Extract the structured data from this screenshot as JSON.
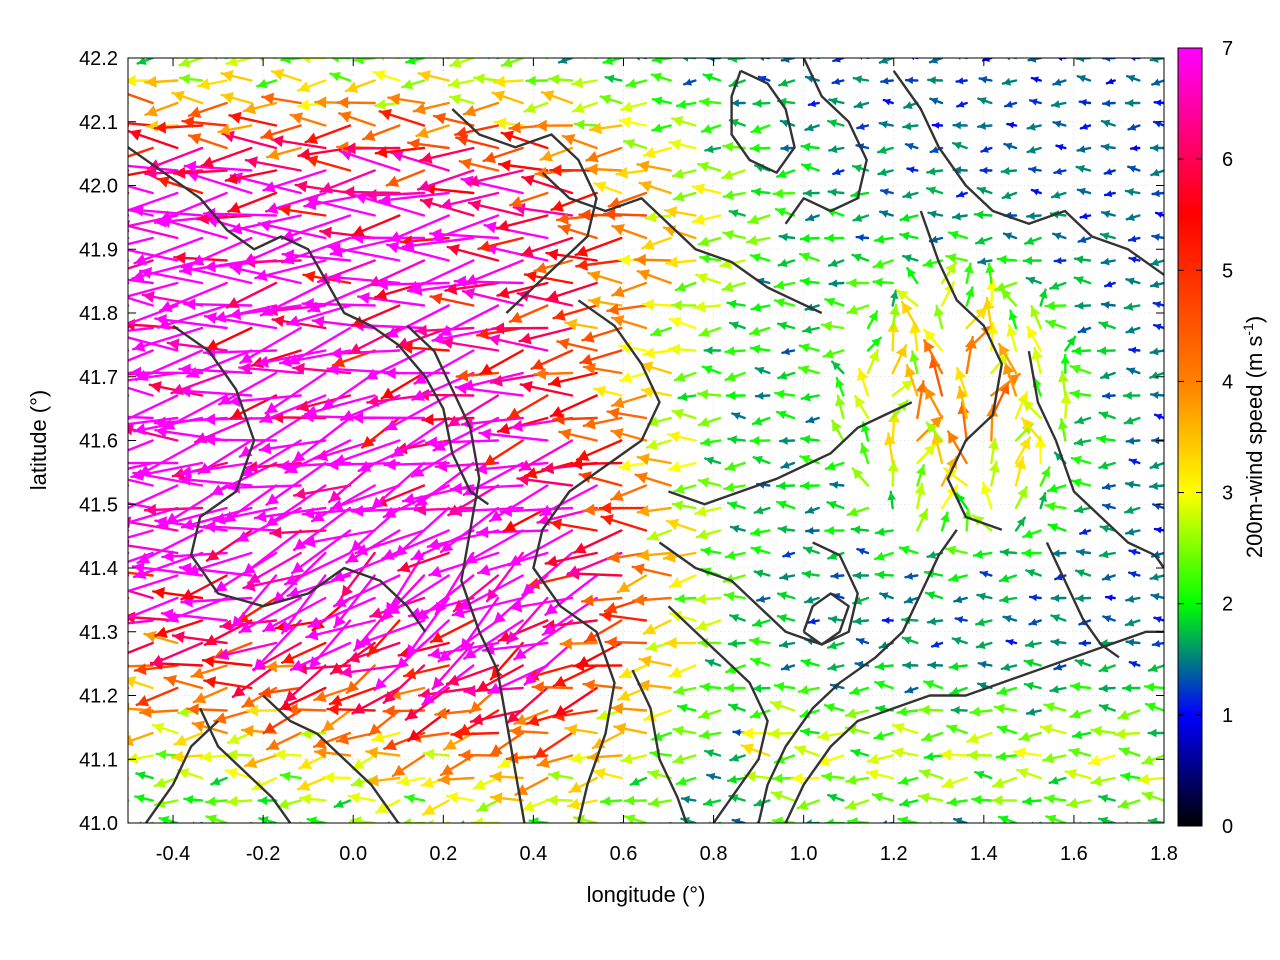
{
  "chart_data": {
    "type": "vector-field",
    "title": "",
    "xlabel": "longitude (°)",
    "ylabel": "latitude (°)",
    "xlim": [
      -0.5,
      1.8
    ],
    "ylim": [
      41.0,
      42.2
    ],
    "xticks": [
      -0.4,
      -0.2,
      0.0,
      0.2,
      0.4,
      0.6,
      0.8,
      1.0,
      1.2,
      1.4,
      1.6,
      1.8
    ],
    "xtick_labels": [
      "-0.4",
      "-0.2",
      "0.0",
      "0.2",
      "0.4",
      "0.6",
      "0.8",
      "1.0",
      "1.2",
      "1.4",
      "1.6",
      "1.8"
    ],
    "yticks": [
      41.0,
      41.1,
      41.2,
      41.3,
      41.4,
      41.5,
      41.6,
      41.7,
      41.8,
      41.9,
      42.0,
      42.1,
      42.2
    ],
    "ytick_labels": [
      "41.0",
      "41.1",
      "41.2",
      "41.3",
      "41.4",
      "41.5",
      "41.6",
      "41.7",
      "41.8",
      "41.9",
      "42.0",
      "42.1",
      "42.2"
    ],
    "grid": true,
    "colorbar": {
      "label_main": "200m-wind speed (m s",
      "label_sup": "-1",
      "label_end": ")",
      "range": [
        0,
        7
      ],
      "ticks": [
        "0",
        "1",
        "2",
        "3",
        "4",
        "5",
        "6",
        "7"
      ],
      "stops": [
        "#000000",
        "#0000ff",
        "#00ff00",
        "#ffff00",
        "#ff8000",
        "#ff0000",
        "#ff00ff"
      ]
    },
    "contours": [
      [
        [
          -0.5,
          42.06
        ],
        [
          -0.42,
          42.02
        ],
        [
          -0.34,
          41.98
        ],
        [
          -0.28,
          41.93
        ],
        [
          -0.22,
          41.9
        ],
        [
          -0.16,
          41.92
        ],
        [
          -0.1,
          41.9
        ],
        [
          -0.06,
          41.85
        ],
        [
          -0.02,
          41.8
        ],
        [
          0.04,
          41.78
        ],
        [
          0.1,
          41.75
        ],
        [
          0.16,
          41.7
        ],
        [
          0.2,
          41.65
        ],
        [
          0.22,
          41.58
        ],
        [
          0.26,
          41.52
        ],
        [
          0.3,
          41.5
        ]
      ],
      [
        [
          -0.4,
          41.78
        ],
        [
          -0.32,
          41.74
        ],
        [
          -0.26,
          41.68
        ],
        [
          -0.22,
          41.6
        ],
        [
          -0.26,
          41.52
        ],
        [
          -0.34,
          41.48
        ],
        [
          -0.36,
          41.42
        ],
        [
          -0.3,
          41.36
        ],
        [
          -0.2,
          41.34
        ],
        [
          -0.1,
          41.36
        ],
        [
          -0.02,
          41.4
        ],
        [
          0.06,
          41.38
        ],
        [
          0.12,
          41.34
        ],
        [
          0.16,
          41.3
        ]
      ],
      [
        [
          0.12,
          41.78
        ],
        [
          0.18,
          41.74
        ],
        [
          0.22,
          41.68
        ],
        [
          0.26,
          41.62
        ],
        [
          0.28,
          41.54
        ],
        [
          0.26,
          41.46
        ],
        [
          0.24,
          41.38
        ],
        [
          0.28,
          41.3
        ],
        [
          0.32,
          41.24
        ],
        [
          0.34,
          41.16
        ],
        [
          0.36,
          41.08
        ],
        [
          0.38,
          41.0
        ]
      ],
      [
        [
          0.5,
          41.82
        ],
        [
          0.58,
          41.78
        ],
        [
          0.64,
          41.72
        ],
        [
          0.68,
          41.66
        ],
        [
          0.64,
          41.6
        ],
        [
          0.56,
          41.56
        ],
        [
          0.48,
          41.52
        ],
        [
          0.42,
          41.46
        ],
        [
          0.4,
          41.4
        ],
        [
          0.46,
          41.34
        ],
        [
          0.54,
          41.3
        ],
        [
          0.58,
          41.22
        ],
        [
          0.56,
          41.14
        ],
        [
          0.52,
          41.06
        ],
        [
          0.5,
          41.0
        ]
      ],
      [
        [
          0.42,
          42.02
        ],
        [
          0.48,
          41.98
        ],
        [
          0.56,
          41.96
        ],
        [
          0.64,
          41.98
        ],
        [
          0.7,
          41.94
        ],
        [
          0.76,
          41.9
        ],
        [
          0.84,
          41.88
        ],
        [
          0.92,
          41.84
        ],
        [
          0.98,
          41.82
        ],
        [
          1.04,
          41.8
        ]
      ],
      [
        [
          0.22,
          42.12
        ],
        [
          0.28,
          42.08
        ],
        [
          0.36,
          42.06
        ],
        [
          0.44,
          42.08
        ],
        [
          0.5,
          42.04
        ],
        [
          0.54,
          41.98
        ],
        [
          0.52,
          41.92
        ],
        [
          0.46,
          41.88
        ],
        [
          0.4,
          41.84
        ],
        [
          0.34,
          41.8
        ]
      ],
      [
        [
          0.86,
          42.18
        ],
        [
          0.92,
          42.16
        ],
        [
          0.96,
          42.12
        ],
        [
          0.98,
          42.06
        ],
        [
          0.94,
          42.02
        ],
        [
          0.88,
          42.04
        ],
        [
          0.84,
          42.08
        ],
        [
          0.84,
          42.14
        ],
        [
          0.86,
          42.18
        ]
      ],
      [
        [
          1.0,
          42.2
        ],
        [
          1.04,
          42.14
        ],
        [
          1.1,
          42.1
        ],
        [
          1.14,
          42.04
        ],
        [
          1.12,
          41.98
        ],
        [
          1.06,
          41.96
        ],
        [
          1.0,
          41.98
        ],
        [
          0.96,
          41.94
        ]
      ],
      [
        [
          1.2,
          42.18
        ],
        [
          1.26,
          42.12
        ],
        [
          1.3,
          42.06
        ],
        [
          1.36,
          42.0
        ],
        [
          1.42,
          41.96
        ],
        [
          1.5,
          41.94
        ],
        [
          1.58,
          41.96
        ],
        [
          1.64,
          41.92
        ],
        [
          1.72,
          41.9
        ],
        [
          1.8,
          41.86
        ]
      ],
      [
        [
          1.26,
          41.96
        ],
        [
          1.3,
          41.88
        ],
        [
          1.34,
          41.82
        ],
        [
          1.4,
          41.78
        ],
        [
          1.44,
          41.72
        ],
        [
          1.42,
          41.64
        ],
        [
          1.36,
          41.6
        ],
        [
          1.32,
          41.54
        ],
        [
          1.36,
          41.48
        ],
        [
          1.44,
          41.46
        ]
      ],
      [
        [
          1.5,
          41.74
        ],
        [
          1.52,
          41.66
        ],
        [
          1.56,
          41.6
        ],
        [
          1.6,
          41.52
        ],
        [
          1.66,
          41.48
        ],
        [
          1.72,
          41.44
        ],
        [
          1.78,
          41.42
        ],
        [
          1.8,
          41.4
        ]
      ],
      [
        [
          0.7,
          41.52
        ],
        [
          0.78,
          41.5
        ],
        [
          0.86,
          41.52
        ],
        [
          0.94,
          41.54
        ],
        [
          1.0,
          41.56
        ],
        [
          1.06,
          41.58
        ],
        [
          1.12,
          41.62
        ],
        [
          1.18,
          41.64
        ],
        [
          1.24,
          41.66
        ]
      ],
      [
        [
          0.68,
          41.44
        ],
        [
          0.76,
          41.4
        ],
        [
          0.84,
          41.38
        ],
        [
          0.9,
          41.34
        ],
        [
          0.96,
          41.3
        ],
        [
          1.04,
          41.28
        ],
        [
          1.1,
          41.3
        ],
        [
          1.12,
          41.36
        ],
        [
          1.08,
          41.42
        ],
        [
          1.02,
          41.44
        ]
      ],
      [
        [
          0.7,
          41.34
        ],
        [
          0.76,
          41.3
        ],
        [
          0.82,
          41.26
        ],
        [
          0.88,
          41.22
        ],
        [
          0.92,
          41.16
        ],
        [
          0.9,
          41.1
        ],
        [
          0.86,
          41.06
        ],
        [
          0.82,
          41.02
        ],
        [
          0.8,
          41.0
        ]
      ],
      [
        [
          0.9,
          41.0
        ],
        [
          0.92,
          41.06
        ],
        [
          0.96,
          41.12
        ],
        [
          1.02,
          41.18
        ],
        [
          1.08,
          41.22
        ],
        [
          1.16,
          41.26
        ],
        [
          1.22,
          41.3
        ],
        [
          1.26,
          41.36
        ],
        [
          1.3,
          41.42
        ],
        [
          1.34,
          41.46
        ]
      ],
      [
        [
          0.96,
          41.0
        ],
        [
          1.0,
          41.06
        ],
        [
          1.06,
          41.12
        ],
        [
          1.12,
          41.16
        ],
        [
          1.2,
          41.18
        ],
        [
          1.28,
          41.2
        ],
        [
          1.36,
          41.2
        ],
        [
          1.44,
          41.22
        ],
        [
          1.52,
          41.24
        ],
        [
          1.6,
          41.26
        ],
        [
          1.68,
          41.28
        ],
        [
          1.76,
          41.3
        ],
        [
          1.8,
          41.3
        ]
      ],
      [
        [
          1.0,
          41.3
        ],
        [
          1.02,
          41.34
        ],
        [
          1.06,
          41.36
        ],
        [
          1.1,
          41.34
        ],
        [
          1.08,
          41.3
        ],
        [
          1.04,
          41.28
        ],
        [
          1.0,
          41.3
        ]
      ],
      [
        [
          -0.2,
          41.2
        ],
        [
          -0.14,
          41.16
        ],
        [
          -0.08,
          41.14
        ],
        [
          -0.02,
          41.1
        ],
        [
          0.04,
          41.06
        ],
        [
          0.08,
          41.02
        ],
        [
          0.1,
          41.0
        ]
      ],
      [
        [
          -0.34,
          41.18
        ],
        [
          -0.3,
          41.12
        ],
        [
          -0.24,
          41.08
        ],
        [
          -0.18,
          41.04
        ],
        [
          -0.14,
          41.0
        ]
      ],
      [
        [
          0.62,
          41.24
        ],
        [
          0.66,
          41.18
        ],
        [
          0.68,
          41.1
        ],
        [
          0.72,
          41.04
        ],
        [
          0.74,
          41.0
        ]
      ],
      [
        [
          1.54,
          41.44
        ],
        [
          1.58,
          41.38
        ],
        [
          1.62,
          41.32
        ],
        [
          1.66,
          41.28
        ],
        [
          1.7,
          41.26
        ]
      ],
      [
        [
          -0.46,
          41.0
        ],
        [
          -0.4,
          41.06
        ],
        [
          -0.36,
          41.12
        ],
        [
          -0.3,
          41.16
        ]
      ]
    ]
  }
}
